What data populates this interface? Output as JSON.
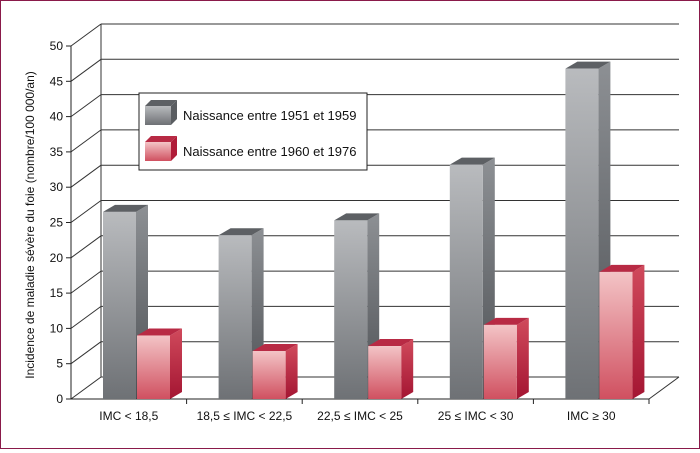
{
  "chart_data": {
    "type": "bar",
    "title": "",
    "xlabel": "",
    "ylabel": "Incidence de maladie sévère du foie (nombre/100 000/an)",
    "ylim": [
      0,
      50
    ],
    "yticks": [
      0,
      5,
      10,
      15,
      20,
      25,
      30,
      35,
      40,
      45,
      50
    ],
    "grid": true,
    "style": "3d-column",
    "legend_position": "upper-left-inside",
    "categories": [
      "IMC < 18,5",
      "18,5 ≤ IMC < 22,5",
      "22,5 ≤ IMC < 25",
      "25 ≤ IMC < 30",
      "IMC ≥ 30"
    ],
    "series": [
      {
        "name": "Naissance entre 1951 et 1959",
        "color": "#8f9296",
        "values": [
          26.5,
          23.2,
          25.3,
          33.2,
          46.8
        ]
      },
      {
        "name": "Naissance entre 1960 et 1976",
        "color": "#d8646c",
        "values": [
          9,
          6.8,
          7.5,
          10.5,
          18
        ]
      }
    ]
  }
}
